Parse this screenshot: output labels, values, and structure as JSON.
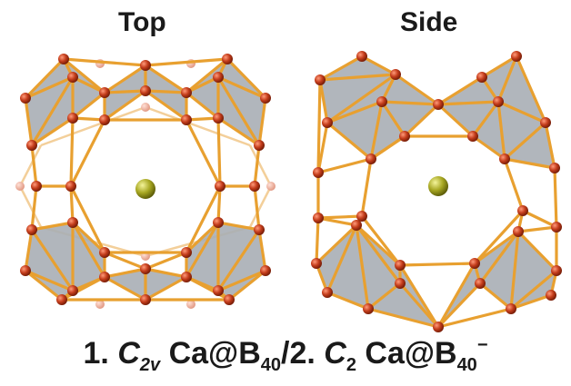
{
  "titles": {
    "top": "Top",
    "side": "Side"
  },
  "caption": {
    "n1": "1. ",
    "sym1": "C",
    "sym1_sub": "2v",
    "species1": " Ca@B",
    "species1_sub": "40",
    "sep": "/2. ",
    "sym2": "C",
    "sym2_sub": "2",
    "species2": " Ca@B",
    "species2_sub": "40",
    "charge2": "−"
  },
  "colors": {
    "bond": "#e8a030",
    "bond_back": "#f3cf9a",
    "face": "#a9aeb5",
    "atom": "#c43d1c",
    "atom_back": "#e9a592",
    "calcium": "#a7a722"
  }
}
